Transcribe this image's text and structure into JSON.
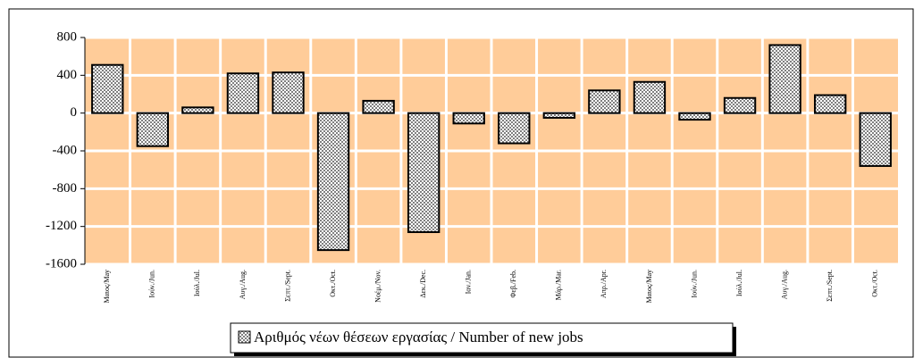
{
  "chart_data": {
    "type": "bar",
    "categories": [
      "Μαιος/May",
      "Ιούν./Jun.",
      "Ιούλ./Jul.",
      "Αυγ./Aug.",
      "Σεπτ./Sept.",
      "Οκτ./Oct.",
      "Νοέμ./Nov.",
      "Δεκ./Dec.",
      "Ιαν./Jan.",
      "Φεβ./Feb.",
      "Μάρ./Mar.",
      "Απρ./Apr.",
      "Μαιος/May",
      "Ιούν./Jun.",
      "Ιούλ./Jul.",
      "Αυγ./Aug.",
      "Σεπτ./Sept.",
      "Οκτ./Oct."
    ],
    "series": [
      {
        "name": "Αριθμός νέων θέσεων εργασίας / Number of new jobs",
        "color": "#808080",
        "values": [
          510,
          -350,
          60,
          420,
          430,
          -1450,
          130,
          -1260,
          -110,
          -320,
          -50,
          240,
          330,
          -70,
          160,
          720,
          190,
          -560
        ]
      }
    ],
    "ylim": [
      -1600,
      800
    ],
    "yticks": [
      -1600,
      -1200,
      -800,
      -400,
      0,
      400,
      800
    ],
    "grid": true,
    "background": "#ffcc99",
    "legend": "bottom"
  }
}
